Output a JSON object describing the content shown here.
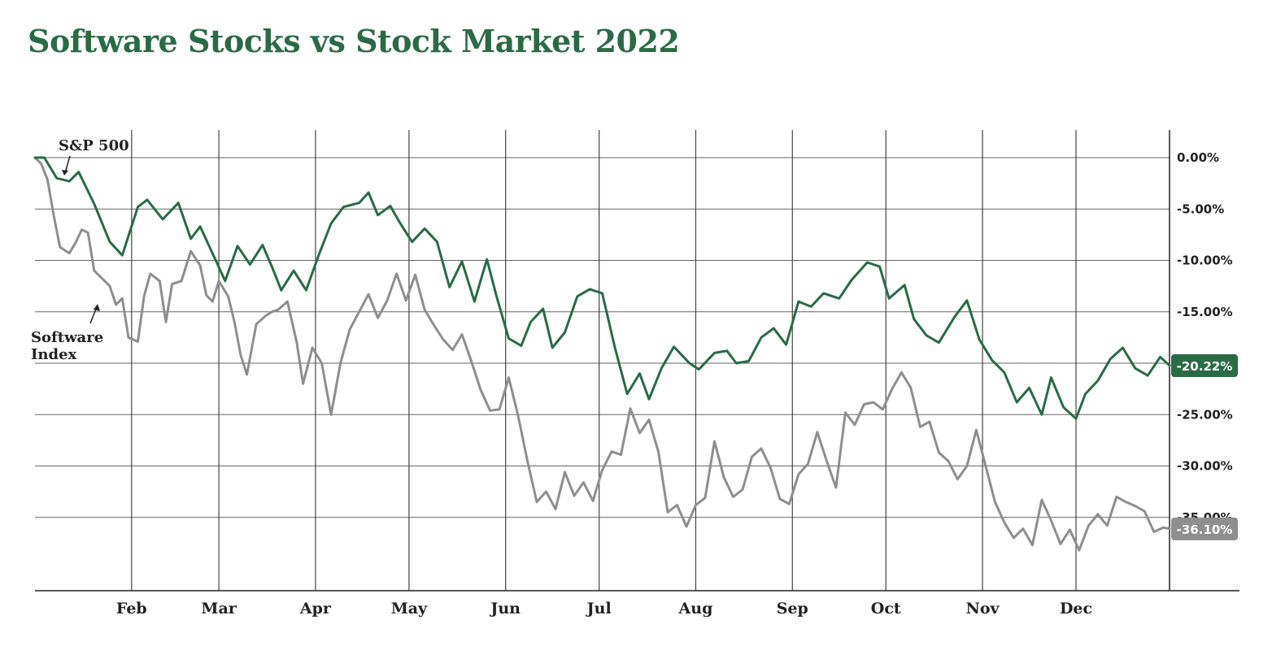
{
  "chart_data": {
    "type": "line",
    "title": "Software Stocks vs Stock Market 2022",
    "xlabel": "",
    "ylabel": "",
    "x_ticks": [
      "Feb",
      "Mar",
      "Apr",
      "May",
      "Jun",
      "Jul",
      "Aug",
      "Sep",
      "Oct",
      "Nov",
      "Dec"
    ],
    "y_ticks": [
      "0.00%",
      "-5.00%",
      "-10.00%",
      "-15.00%",
      "-20.00%",
      "-25.00%",
      "-30.00%",
      "-35.00%"
    ],
    "ylim": [
      -42,
      2.6
    ],
    "x_range": [
      1,
      365
    ],
    "grid": true,
    "series": [
      {
        "name": "S&P 500",
        "annotation": "S&P 500",
        "color": "#2a6b45",
        "end_label": "-20.22%",
        "points": [
          [
            1,
            0
          ],
          [
            4,
            0
          ],
          [
            8,
            -2
          ],
          [
            12,
            -2.3
          ],
          [
            15,
            -1.4
          ],
          [
            20,
            -4.5
          ],
          [
            25,
            -8.2
          ],
          [
            29,
            -9.5
          ],
          [
            34,
            -4.8
          ],
          [
            37,
            -4.1
          ],
          [
            42,
            -6.0
          ],
          [
            47,
            -4.4
          ],
          [
            51,
            -7.9
          ],
          [
            54,
            -6.7
          ],
          [
            59,
            -10.0
          ],
          [
            62,
            -12.0
          ],
          [
            66,
            -8.6
          ],
          [
            70,
            -10.4
          ],
          [
            74,
            -8.5
          ],
          [
            77,
            -10.6
          ],
          [
            80,
            -12.9
          ],
          [
            84,
            -11.0
          ],
          [
            88,
            -12.9
          ],
          [
            92,
            -9.5
          ],
          [
            96,
            -6.4
          ],
          [
            100,
            -4.8
          ],
          [
            105,
            -4.4
          ],
          [
            108,
            -3.4
          ],
          [
            111,
            -5.6
          ],
          [
            115,
            -4.7
          ],
          [
            118,
            -6.3
          ],
          [
            122,
            -8.2
          ],
          [
            126,
            -6.9
          ],
          [
            130,
            -8.2
          ],
          [
            134,
            -12.6
          ],
          [
            138,
            -10.1
          ],
          [
            142,
            -14.0
          ],
          [
            146,
            -9.9
          ],
          [
            149,
            -13.4
          ],
          [
            153,
            -17.6
          ],
          [
            157,
            -18.3
          ],
          [
            160,
            -16.0
          ],
          [
            164,
            -14.7
          ],
          [
            167,
            -18.5
          ],
          [
            171,
            -17.0
          ],
          [
            175,
            -13.5
          ],
          [
            179,
            -12.8
          ],
          [
            183,
            -13.2
          ],
          [
            187,
            -18.4
          ],
          [
            191,
            -23.0
          ],
          [
            195,
            -21.0
          ],
          [
            198,
            -23.5
          ],
          [
            202,
            -20.5
          ],
          [
            206,
            -18.4
          ],
          [
            211,
            -20.0
          ],
          [
            214,
            -20.6
          ],
          [
            219,
            -19.0
          ],
          [
            223,
            -18.8
          ],
          [
            226,
            -20.0
          ],
          [
            230,
            -19.8
          ],
          [
            234,
            -17.5
          ],
          [
            238,
            -16.6
          ],
          [
            242,
            -18.2
          ],
          [
            246,
            -14.0
          ],
          [
            250,
            -14.5
          ],
          [
            254,
            -13.2
          ],
          [
            259,
            -13.7
          ],
          [
            263,
            -11.9
          ],
          [
            268,
            -10.2
          ],
          [
            272,
            -10.6
          ],
          [
            275,
            -13.7
          ],
          [
            280,
            -12.4
          ],
          [
            283,
            -15.7
          ],
          [
            287,
            -17.3
          ],
          [
            291,
            -18.0
          ],
          [
            296,
            -15.5
          ],
          [
            300,
            -13.9
          ],
          [
            304,
            -17.7
          ],
          [
            308,
            -19.7
          ],
          [
            312,
            -20.9
          ],
          [
            316,
            -23.8
          ],
          [
            320,
            -22.4
          ],
          [
            324,
            -25.0
          ],
          [
            327,
            -21.4
          ],
          [
            331,
            -24.3
          ],
          [
            335,
            -25.4
          ],
          [
            338,
            -23.0
          ],
          [
            342,
            -21.7
          ],
          [
            346,
            -19.6
          ],
          [
            350,
            -18.5
          ],
          [
            354,
            -20.5
          ],
          [
            358,
            -21.2
          ],
          [
            362,
            -19.4
          ],
          [
            365,
            -20.22
          ]
        ]
      },
      {
        "name": "Software Index",
        "annotation": "Software\nIndex",
        "color": "#8e8e8e",
        "end_label": "-36.10%",
        "points": [
          [
            1,
            0
          ],
          [
            3,
            -0.6
          ],
          [
            5,
            -2.1
          ],
          [
            7,
            -5.6
          ],
          [
            9,
            -8.7
          ],
          [
            12,
            -9.3
          ],
          [
            14,
            -8.3
          ],
          [
            16,
            -7.0
          ],
          [
            18,
            -7.3
          ],
          [
            20,
            -11.0
          ],
          [
            22,
            -11.6
          ],
          [
            25,
            -12.5
          ],
          [
            27,
            -14.3
          ],
          [
            29,
            -13.7
          ],
          [
            31,
            -17.5
          ],
          [
            34,
            -17.9
          ],
          [
            36,
            -13.5
          ],
          [
            38,
            -11.3
          ],
          [
            41,
            -12.0
          ],
          [
            43,
            -16.0
          ],
          [
            45,
            -12.3
          ],
          [
            48,
            -12.0
          ],
          [
            51,
            -9.1
          ],
          [
            54,
            -10.5
          ],
          [
            56,
            -13.4
          ],
          [
            58,
            -14.0
          ],
          [
            60,
            -12.0
          ],
          [
            63,
            -13.5
          ],
          [
            65,
            -16.0
          ],
          [
            67,
            -19.2
          ],
          [
            69,
            -21.1
          ],
          [
            72,
            -16.2
          ],
          [
            75,
            -15.4
          ],
          [
            77,
            -15.0
          ],
          [
            79,
            -14.8
          ],
          [
            82,
            -14.0
          ],
          [
            85,
            -18.0
          ],
          [
            87,
            -22.0
          ],
          [
            90,
            -18.5
          ],
          [
            93,
            -20.0
          ],
          [
            96,
            -25.0
          ],
          [
            99,
            -20.0
          ],
          [
            102,
            -16.7
          ],
          [
            105,
            -15.0
          ],
          [
            108,
            -13.3
          ],
          [
            111,
            -15.6
          ],
          [
            114,
            -13.9
          ],
          [
            117,
            -11.3
          ],
          [
            120,
            -13.9
          ],
          [
            123,
            -11.4
          ],
          [
            126,
            -14.8
          ],
          [
            129,
            -16.3
          ],
          [
            132,
            -17.7
          ],
          [
            135,
            -18.7
          ],
          [
            138,
            -17.2
          ],
          [
            141,
            -19.8
          ],
          [
            144,
            -22.6
          ],
          [
            147,
            -24.6
          ],
          [
            150,
            -24.5
          ],
          [
            153,
            -21.4
          ],
          [
            156,
            -25.1
          ],
          [
            159,
            -29.5
          ],
          [
            162,
            -33.5
          ],
          [
            165,
            -32.5
          ],
          [
            168,
            -34.2
          ],
          [
            171,
            -30.6
          ],
          [
            174,
            -32.9
          ],
          [
            177,
            -31.6
          ],
          [
            180,
            -33.4
          ],
          [
            183,
            -30.4
          ],
          [
            186,
            -28.6
          ],
          [
            189,
            -28.9
          ],
          [
            192,
            -24.4
          ],
          [
            195,
            -26.8
          ],
          [
            198,
            -25.5
          ],
          [
            201,
            -28.6
          ],
          [
            204,
            -34.5
          ],
          [
            207,
            -33.8
          ],
          [
            210,
            -35.9
          ],
          [
            213,
            -33.8
          ],
          [
            216,
            -33.1
          ],
          [
            219,
            -27.6
          ],
          [
            222,
            -31.1
          ],
          [
            225,
            -33.0
          ],
          [
            228,
            -32.3
          ],
          [
            231,
            -29.1
          ],
          [
            234,
            -28.3
          ],
          [
            237,
            -30.2
          ],
          [
            240,
            -33.2
          ],
          [
            243,
            -33.7
          ],
          [
            246,
            -30.8
          ],
          [
            249,
            -29.8
          ],
          [
            252,
            -26.7
          ],
          [
            255,
            -29.5
          ],
          [
            258,
            -32.1
          ],
          [
            261,
            -24.8
          ],
          [
            264,
            -26.0
          ],
          [
            267,
            -24.0
          ],
          [
            270,
            -23.8
          ],
          [
            273,
            -24.5
          ],
          [
            276,
            -22.5
          ],
          [
            279,
            -20.9
          ],
          [
            282,
            -22.4
          ],
          [
            285,
            -26.2
          ],
          [
            288,
            -25.7
          ],
          [
            291,
            -28.7
          ],
          [
            294,
            -29.5
          ],
          [
            297,
            -31.3
          ],
          [
            300,
            -30.0
          ],
          [
            303,
            -26.5
          ],
          [
            306,
            -30.0
          ],
          [
            309,
            -33.5
          ],
          [
            312,
            -35.5
          ],
          [
            315,
            -37.0
          ],
          [
            318,
            -36.1
          ],
          [
            321,
            -37.7
          ],
          [
            324,
            -33.3
          ],
          [
            327,
            -35.3
          ],
          [
            330,
            -37.6
          ],
          [
            333,
            -36.2
          ],
          [
            336,
            -38.2
          ],
          [
            339,
            -35.8
          ],
          [
            342,
            -34.7
          ],
          [
            345,
            -35.8
          ],
          [
            348,
            -33.0
          ],
          [
            351,
            -33.5
          ],
          [
            354,
            -33.9
          ],
          [
            357,
            -34.4
          ],
          [
            360,
            -36.4
          ],
          [
            363,
            -36.0
          ],
          [
            365,
            -36.1
          ]
        ]
      }
    ]
  }
}
